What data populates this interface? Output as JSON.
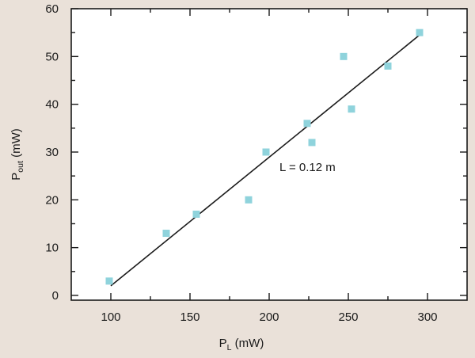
{
  "chart_data": {
    "type": "scatter",
    "xlabel": {
      "main": "P",
      "sub": "L",
      "unit": " (mW)"
    },
    "ylabel": {
      "main": "P",
      "sub": "out",
      "unit": " (mW)"
    },
    "xlim": [
      75,
      325
    ],
    "ylim": [
      -1,
      60
    ],
    "xticks": [
      100,
      150,
      200,
      250,
      300
    ],
    "yticks": [
      0,
      10,
      20,
      30,
      40,
      50,
      60
    ],
    "points": [
      {
        "x": 99,
        "y": 3
      },
      {
        "x": 135,
        "y": 13
      },
      {
        "x": 154,
        "y": 17
      },
      {
        "x": 187,
        "y": 20
      },
      {
        "x": 198,
        "y": 30
      },
      {
        "x": 224,
        "y": 36
      },
      {
        "x": 227,
        "y": 32
      },
      {
        "x": 247,
        "y": 50
      },
      {
        "x": 252,
        "y": 39
      },
      {
        "x": 275,
        "y": 48
      },
      {
        "x": 295,
        "y": 55
      }
    ],
    "fit_line": {
      "x": [
        100,
        295
      ],
      "y": [
        2,
        54.5
      ]
    },
    "annotation": "L = 0.12 m",
    "marker_color": "#8fd3dc",
    "grid": false
  }
}
